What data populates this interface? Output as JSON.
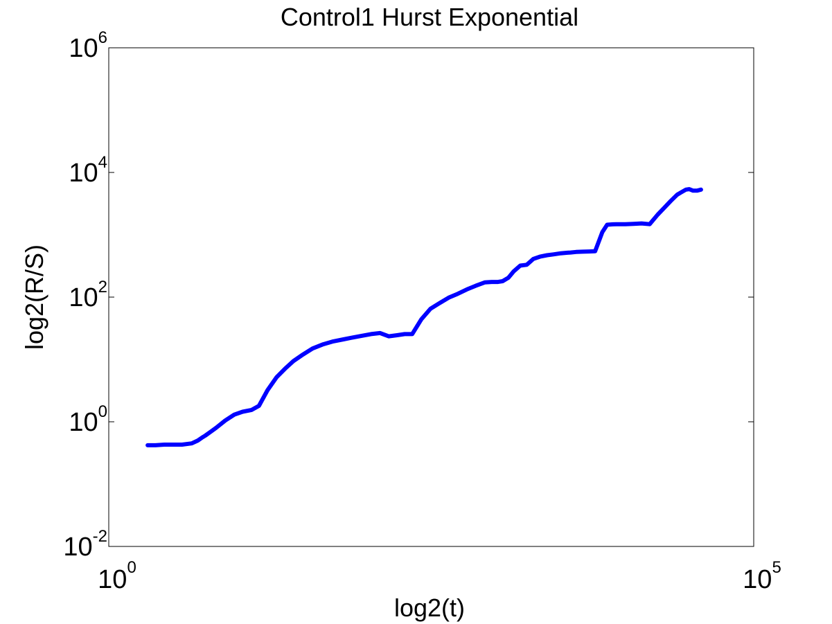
{
  "chart_data": {
    "type": "line",
    "title": "Control1 Hurst Exponential",
    "xlabel": "log2(t)",
    "ylabel": "log2(R/S)",
    "xscale": "log",
    "yscale": "log",
    "xlim": [
      1,
      100000
    ],
    "ylim": [
      0.01,
      1000000
    ],
    "grid": false,
    "xticks": [
      {
        "value": 1,
        "base": "10",
        "exp": "0"
      },
      {
        "value": 100000,
        "base": "10",
        "exp": "5"
      }
    ],
    "yticks": [
      {
        "value": 0.01,
        "base": "10",
        "exp": "-2"
      },
      {
        "value": 1,
        "base": "10",
        "exp": "0"
      },
      {
        "value": 100,
        "base": "10",
        "exp": "2"
      },
      {
        "value": 10000,
        "base": "10",
        "exp": "4"
      },
      {
        "value": 1000000,
        "base": "10",
        "exp": "6"
      }
    ],
    "color": "#0000ff",
    "series": [
      {
        "x": [
          2,
          2.3,
          2.7,
          3.1,
          3.7,
          4.4,
          4.9,
          5.3,
          5.6,
          6.1,
          6.8,
          8,
          9.4,
          10.9,
          12.8,
          14.6,
          17,
          20,
          23.6,
          27,
          32,
          38,
          46,
          55,
          66,
          78,
          92,
          108,
          127,
          148,
          172,
          197,
          225,
          265,
          312,
          367,
          432,
          508,
          597,
          700,
          822,
          930,
          1040,
          1130,
          1255,
          1380,
          1550,
          1740,
          1960,
          2200,
          2500,
          2800,
          3200,
          3600,
          3800,
          4200,
          4750,
          5300,
          5900,
          6700,
          7300,
          8100,
          9000,
          10100,
          11700,
          13500,
          15600,
          18000,
          20200,
          22800,
          25500,
          27400,
          29800,
          31600,
          33900,
          36300,
          39000
        ],
        "y": [
          0.42,
          0.42,
          0.43,
          0.43,
          0.43,
          0.45,
          0.5,
          0.56,
          0.6,
          0.68,
          0.8,
          1.05,
          1.3,
          1.45,
          1.55,
          1.8,
          3.2,
          5.2,
          7.3,
          9.4,
          12,
          15,
          17.5,
          19.5,
          21,
          22.5,
          24,
          25.5,
          26.5,
          23.5,
          24.5,
          25.5,
          25.5,
          44,
          65,
          80,
          98,
          113,
          133,
          152,
          172,
          175,
          175,
          180,
          205,
          260,
          320,
          330,
          410,
          445,
          470,
          485,
          505,
          515,
          520,
          530,
          535,
          540,
          545,
          1100,
          1450,
          1470,
          1480,
          1480,
          1500,
          1520,
          1480,
          2100,
          2700,
          3500,
          4400,
          4800,
          5300,
          5400,
          5100,
          5100,
          5300
        ]
      }
    ]
  }
}
